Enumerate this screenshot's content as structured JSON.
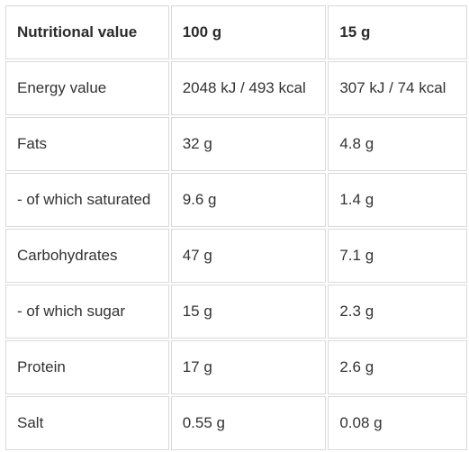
{
  "table": {
    "headers": [
      "Nutritional value",
      "100 g",
      "15 g"
    ],
    "rows": [
      [
        "Energy value",
        "2048 kJ / 493 kcal",
        "307 kJ / 74 kcal"
      ],
      [
        "Fats",
        "32 g",
        "4.8 g"
      ],
      [
        "- of which saturated",
        "9.6 g",
        "1.4 g"
      ],
      [
        "Carbohydrates",
        "47 g",
        "7.1 g"
      ],
      [
        "- of which sugar",
        "15 g",
        "2.3 g"
      ],
      [
        "Protein",
        "17 g",
        "2.6 g"
      ],
      [
        "Salt",
        "0.55 g",
        "0.08 g"
      ]
    ]
  }
}
